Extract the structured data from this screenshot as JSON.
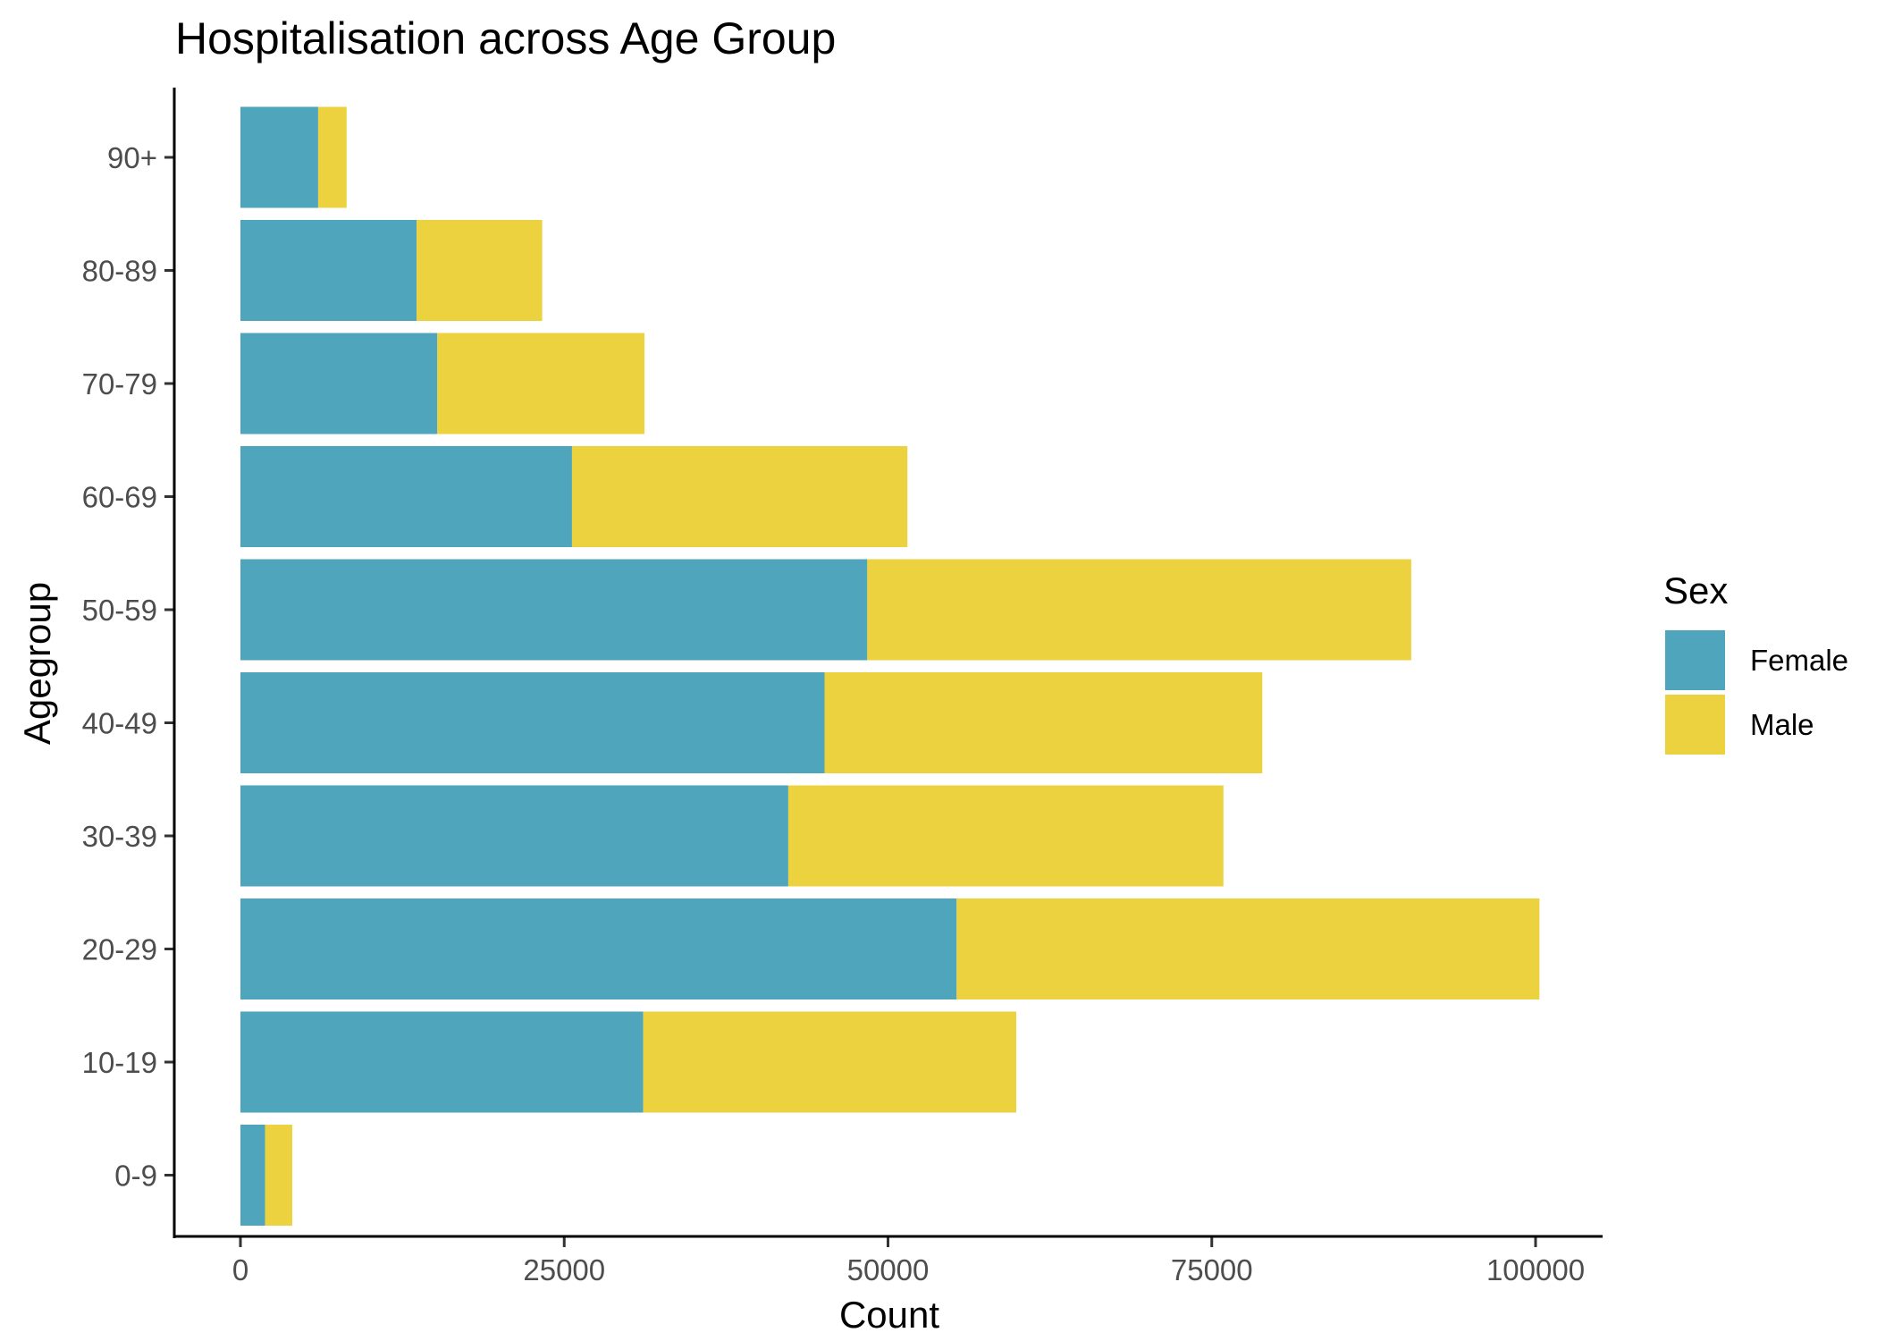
{
  "chart_data": {
    "type": "bar",
    "orientation": "horizontal",
    "stacked": true,
    "title": "Hospitalisation across Age Group",
    "xlabel": "Count",
    "ylabel": "Agegroup",
    "categories": [
      "0-9",
      "10-19",
      "20-29",
      "30-39",
      "40-49",
      "50-59",
      "60-69",
      "70-79",
      "80-89",
      "90+"
    ],
    "series": [
      {
        "name": "Female",
        "color": "#4FA5BB",
        "values": [
          1900,
          31100,
          55300,
          42300,
          45100,
          48400,
          25600,
          15200,
          13600,
          6000
        ]
      },
      {
        "name": "Male",
        "color": "#ECD23E",
        "values": [
          2100,
          28800,
          45000,
          33600,
          33800,
          42000,
          25900,
          16000,
          9700,
          2200
        ]
      }
    ],
    "xlim": [
      -5000,
      105000
    ],
    "xticks": [
      "0",
      "25000",
      "50000",
      "75000",
      "100000"
    ],
    "grid": false,
    "legend": {
      "title": "Sex",
      "position": "right",
      "entries": [
        "Female",
        "Male"
      ]
    }
  }
}
